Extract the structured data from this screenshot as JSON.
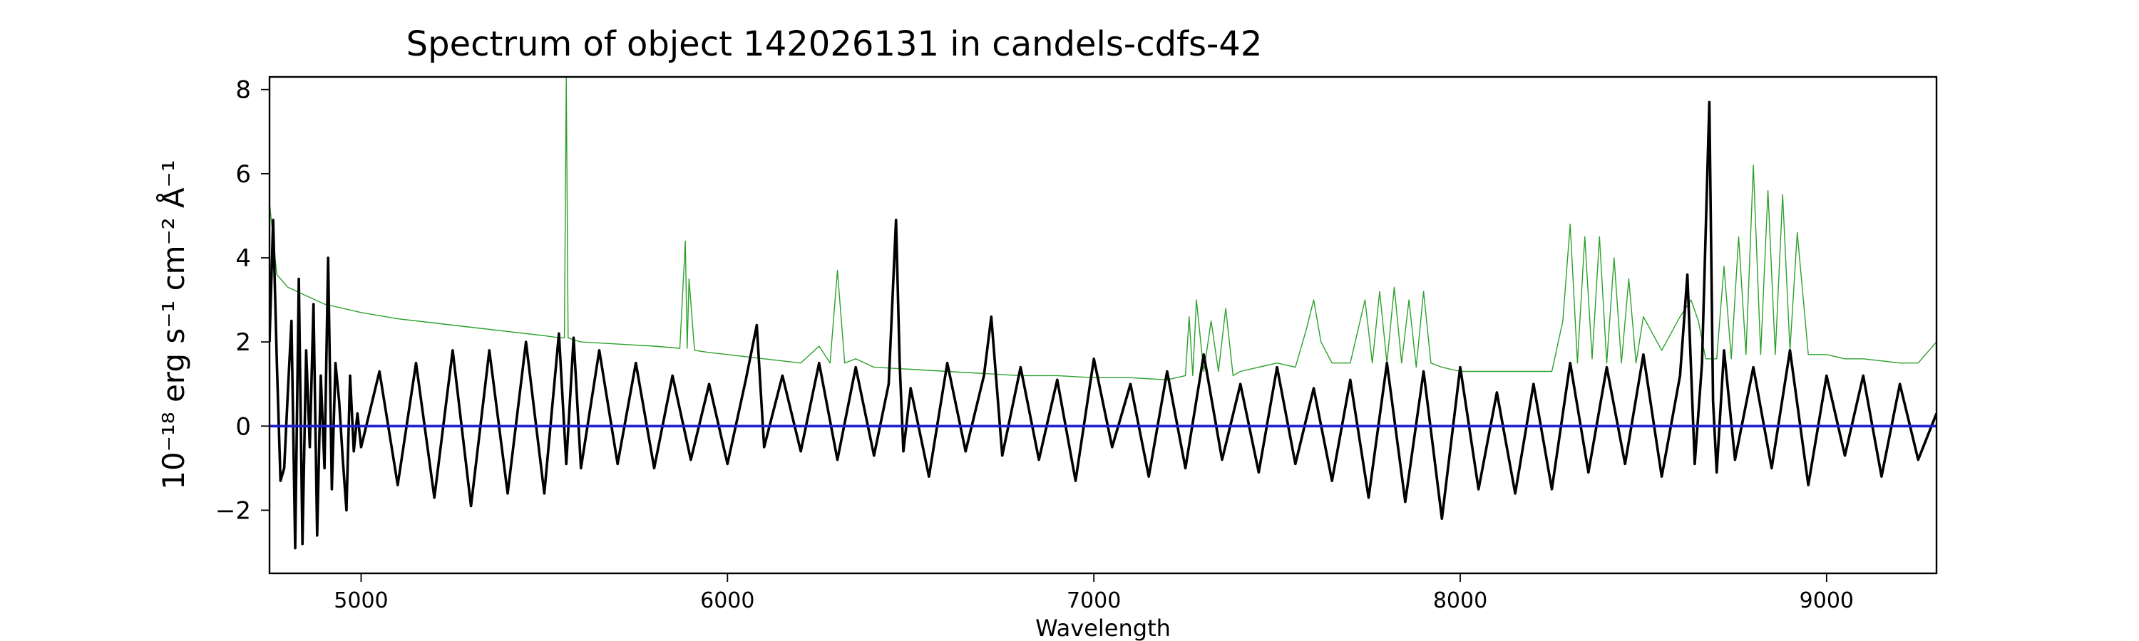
{
  "chart_data": {
    "type": "line",
    "title": "Spectrum of object 142026131 in candels-cdfs-42",
    "xlabel": "Wavelength",
    "ylabel": "10⁻¹⁸ erg s⁻¹ cm⁻² Å⁻¹",
    "xlim": [
      4750,
      9300
    ],
    "ylim": [
      -3.5,
      8.3
    ],
    "x_ticks": [
      5000,
      6000,
      7000,
      8000,
      9000
    ],
    "y_ticks": [
      -2,
      0,
      2,
      4,
      6,
      8
    ],
    "grid": false,
    "legend": "none",
    "series": [
      {
        "role": "flux",
        "color": "#000000",
        "style": "thick",
        "x": [
          4750,
          4760,
          4770,
          4780,
          4790,
          4800,
          4810,
          4820,
          4830,
          4840,
          4850,
          4860,
          4870,
          4880,
          4890,
          4900,
          4910,
          4920,
          4930,
          4940,
          4950,
          4960,
          4970,
          4980,
          4990,
          5000,
          5050,
          5100,
          5150,
          5200,
          5250,
          5300,
          5350,
          5400,
          5450,
          5500,
          5540,
          5560,
          5580,
          5600,
          5650,
          5700,
          5750,
          5800,
          5850,
          5900,
          5950,
          6000,
          6050,
          6080,
          6100,
          6150,
          6200,
          6250,
          6300,
          6350,
          6400,
          6440,
          6460,
          6470,
          6480,
          6500,
          6550,
          6600,
          6650,
          6700,
          6720,
          6750,
          6800,
          6850,
          6900,
          6950,
          7000,
          7050,
          7100,
          7150,
          7200,
          7250,
          7300,
          7350,
          7400,
          7450,
          7500,
          7550,
          7600,
          7650,
          7700,
          7750,
          7800,
          7850,
          7900,
          7950,
          8000,
          8050,
          8100,
          8150,
          8200,
          8250,
          8300,
          8350,
          8400,
          8450,
          8500,
          8550,
          8600,
          8620,
          8640,
          8660,
          8680,
          8690,
          8700,
          8720,
          8750,
          8800,
          8850,
          8900,
          8950,
          9000,
          9050,
          9100,
          9150,
          9200,
          9250,
          9300
        ],
        "values": [
          2.0,
          4.9,
          1.5,
          -1.3,
          -1.0,
          0.8,
          2.5,
          -2.9,
          3.5,
          -2.8,
          1.8,
          -0.5,
          2.9,
          -2.6,
          1.2,
          -1.0,
          4.0,
          -1.5,
          1.5,
          0.6,
          -0.8,
          -2.0,
          1.2,
          -0.6,
          0.3,
          -0.5,
          1.3,
          -1.4,
          1.5,
          -1.7,
          1.8,
          -1.9,
          1.8,
          -1.6,
          2.0,
          -1.6,
          2.2,
          -0.9,
          2.1,
          -1.0,
          1.8,
          -0.9,
          1.5,
          -1.0,
          1.2,
          -0.8,
          1.0,
          -0.9,
          1.1,
          2.4,
          -0.5,
          1.2,
          -0.6,
          1.5,
          -0.8,
          1.4,
          -0.7,
          1.0,
          4.9,
          1.5,
          -0.6,
          0.9,
          -1.2,
          1.5,
          -0.6,
          1.2,
          2.6,
          -0.7,
          1.4,
          -0.8,
          1.1,
          -1.3,
          1.6,
          -0.5,
          1.0,
          -1.2,
          1.3,
          -1.0,
          1.7,
          -0.8,
          1.0,
          -1.1,
          1.4,
          -0.9,
          0.9,
          -1.3,
          1.1,
          -1.7,
          1.5,
          -1.8,
          1.3,
          -2.2,
          1.4,
          -1.5,
          0.8,
          -1.6,
          1.0,
          -1.5,
          1.5,
          -1.1,
          1.4,
          -0.9,
          1.7,
          -1.2,
          1.2,
          3.6,
          -0.9,
          1.5,
          7.7,
          0.6,
          -1.1,
          1.8,
          -0.8,
          1.4,
          -1.0,
          1.8,
          -1.4,
          1.2,
          -0.7,
          1.2,
          -1.2,
          1.0,
          -0.8,
          0.3
        ]
      },
      {
        "role": "model",
        "color": "#2ca02c",
        "style": "thin",
        "x": [
          4750,
          4770,
          4800,
          4850,
          4900,
          5000,
          5100,
          5200,
          5300,
          5400,
          5500,
          5540,
          5555,
          5560,
          5565,
          5580,
          5600,
          5700,
          5800,
          5870,
          5885,
          5890,
          5895,
          5910,
          5950,
          6000,
          6100,
          6200,
          6250,
          6280,
          6300,
          6320,
          6350,
          6400,
          6500,
          6600,
          6700,
          6800,
          6900,
          7000,
          7100,
          7200,
          7250,
          7260,
          7270,
          7280,
          7300,
          7320,
          7340,
          7360,
          7380,
          7400,
          7450,
          7500,
          7550,
          7580,
          7600,
          7620,
          7650,
          7700,
          7740,
          7760,
          7780,
          7800,
          7820,
          7840,
          7860,
          7880,
          7900,
          7920,
          7950,
          8000,
          8050,
          8100,
          8150,
          8200,
          8250,
          8280,
          8300,
          8320,
          8340,
          8360,
          8380,
          8400,
          8420,
          8440,
          8460,
          8480,
          8500,
          8550,
          8600,
          8630,
          8650,
          8670,
          8700,
          8720,
          8740,
          8760,
          8780,
          8800,
          8820,
          8840,
          8860,
          8880,
          8900,
          8920,
          8950,
          9000,
          9050,
          9100,
          9150,
          9200,
          9250,
          9300
        ],
        "values": [
          5.3,
          3.6,
          3.3,
          3.1,
          2.9,
          2.7,
          2.55,
          2.45,
          2.35,
          2.25,
          2.15,
          2.1,
          2.1,
          8.3,
          2.1,
          2.05,
          2.0,
          1.95,
          1.9,
          1.85,
          4.4,
          1.85,
          3.5,
          1.8,
          1.75,
          1.7,
          1.6,
          1.5,
          1.9,
          1.5,
          3.7,
          1.5,
          1.6,
          1.4,
          1.35,
          1.3,
          1.25,
          1.2,
          1.2,
          1.15,
          1.15,
          1.1,
          1.2,
          2.6,
          1.2,
          3.0,
          1.3,
          2.5,
          1.3,
          2.8,
          1.2,
          1.3,
          1.4,
          1.5,
          1.4,
          2.3,
          3.0,
          2.0,
          1.5,
          1.5,
          3.0,
          1.5,
          3.2,
          1.5,
          3.3,
          1.5,
          3.0,
          1.4,
          3.2,
          1.5,
          1.4,
          1.3,
          1.3,
          1.3,
          1.3,
          1.3,
          1.3,
          2.5,
          4.8,
          1.5,
          4.5,
          1.6,
          4.5,
          1.5,
          4.0,
          1.5,
          3.5,
          1.5,
          2.6,
          1.8,
          2.6,
          3.0,
          2.5,
          1.6,
          1.6,
          3.8,
          1.6,
          4.5,
          1.7,
          6.2,
          1.7,
          5.6,
          1.7,
          5.5,
          1.8,
          4.6,
          1.7,
          1.7,
          1.6,
          1.6,
          1.55,
          1.5,
          1.5,
          2.0
        ]
      },
      {
        "role": "zero",
        "color": "#1f1fd0",
        "style": "thick",
        "x": [
          4750,
          9300
        ],
        "values": [
          0,
          0
        ]
      }
    ]
  }
}
